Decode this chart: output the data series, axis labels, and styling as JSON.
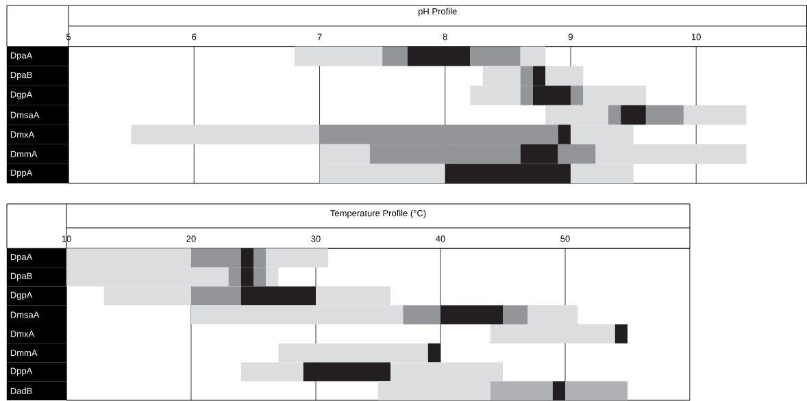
{
  "chart_data": [
    {
      "type": "bar",
      "orientation": "horizontal",
      "grid": "x",
      "title": "pH Profile",
      "categories": [
        "DpaA",
        "DpaB",
        "DgpA",
        "DmsaA",
        "DmxA",
        "DmmA",
        "DppA"
      ],
      "series": [
        {
          "color": "#dcdddf",
          "base": [
            6.8,
            8.3,
            8.2,
            8.8,
            5.5,
            7.0,
            7.0
          ],
          "values": [
            0.7,
            0.3,
            0.4,
            0.5,
            1.5,
            0.4,
            1.0
          ]
        },
        {
          "color": "#939598",
          "base": [
            7.5,
            8.6,
            8.6,
            9.3,
            7.0,
            7.4,
            null
          ],
          "values": [
            0.2,
            0.1,
            0.1,
            0.1,
            1.9,
            1.2,
            null
          ]
        },
        {
          "color": "#231f20",
          "base": [
            7.7,
            8.7,
            8.7,
            9.4,
            8.9,
            8.6,
            8.0
          ],
          "values": [
            0.5,
            0.1,
            0.3,
            0.2,
            0.1,
            0.3,
            1.0
          ]
        },
        {
          "color": "#939598",
          "base": [
            8.2,
            null,
            9.0,
            9.6,
            null,
            8.9,
            null
          ],
          "values": [
            0.4,
            null,
            0.1,
            0.3,
            null,
            0.3,
            null
          ]
        },
        {
          "color": "#dcdddf",
          "base": [
            8.6,
            8.8,
            9.1,
            9.9,
            9.0,
            9.2,
            9.0
          ],
          "values": [
            0.2,
            0.3,
            0.5,
            0.5,
            0.5,
            1.2,
            0.5
          ]
        }
      ],
      "xlim": [
        5,
        10.88
      ],
      "xticks": [
        5,
        6,
        7,
        8,
        9,
        10
      ]
    },
    {
      "type": "bar",
      "orientation": "horizontal",
      "grid": "x",
      "title": "Temperature Profile (°C)",
      "categories": [
        "DpaA",
        "DpaB",
        "DgpA",
        "DmsaA",
        "DmxA",
        "DmmA",
        "DppA",
        "DadB"
      ],
      "series": [
        {
          "color": "#dcdddf",
          "base": [
            10,
            10,
            13,
            20,
            44,
            27,
            24,
            35
          ],
          "values": [
            10,
            13,
            7,
            17,
            10,
            12,
            5,
            9
          ]
        },
        {
          "colors": [
            "#939598",
            "#939598",
            "#939598",
            "#939598",
            "#939598",
            "#939598",
            "#939598",
            "#b0b1b4"
          ],
          "base": [
            20,
            23,
            20,
            37,
            null,
            null,
            null,
            44
          ],
          "values": [
            4,
            1,
            4,
            3,
            null,
            null,
            null,
            5
          ]
        },
        {
          "color": "#231f20",
          "base": [
            24,
            24,
            24,
            40,
            54,
            39,
            29,
            49
          ],
          "values": [
            1,
            1,
            6,
            5,
            1,
            1,
            7,
            1
          ]
        },
        {
          "colors": [
            "#939598",
            "#939598",
            "#939598",
            "#939598",
            "#939598",
            "#939598",
            "#939598",
            "#b0b1b4"
          ],
          "base": [
            25,
            25,
            null,
            45,
            null,
            null,
            null,
            50
          ],
          "values": [
            1,
            1,
            null,
            2,
            null,
            null,
            null,
            5
          ]
        },
        {
          "color": "#dcdddf",
          "base": [
            26,
            26,
            30,
            47,
            null,
            null,
            36,
            null
          ],
          "values": [
            5,
            1,
            6,
            4,
            null,
            null,
            9,
            null
          ]
        }
      ],
      "xlim": [
        10,
        60
      ],
      "xticks": [
        10,
        20,
        30,
        40,
        50
      ]
    }
  ]
}
